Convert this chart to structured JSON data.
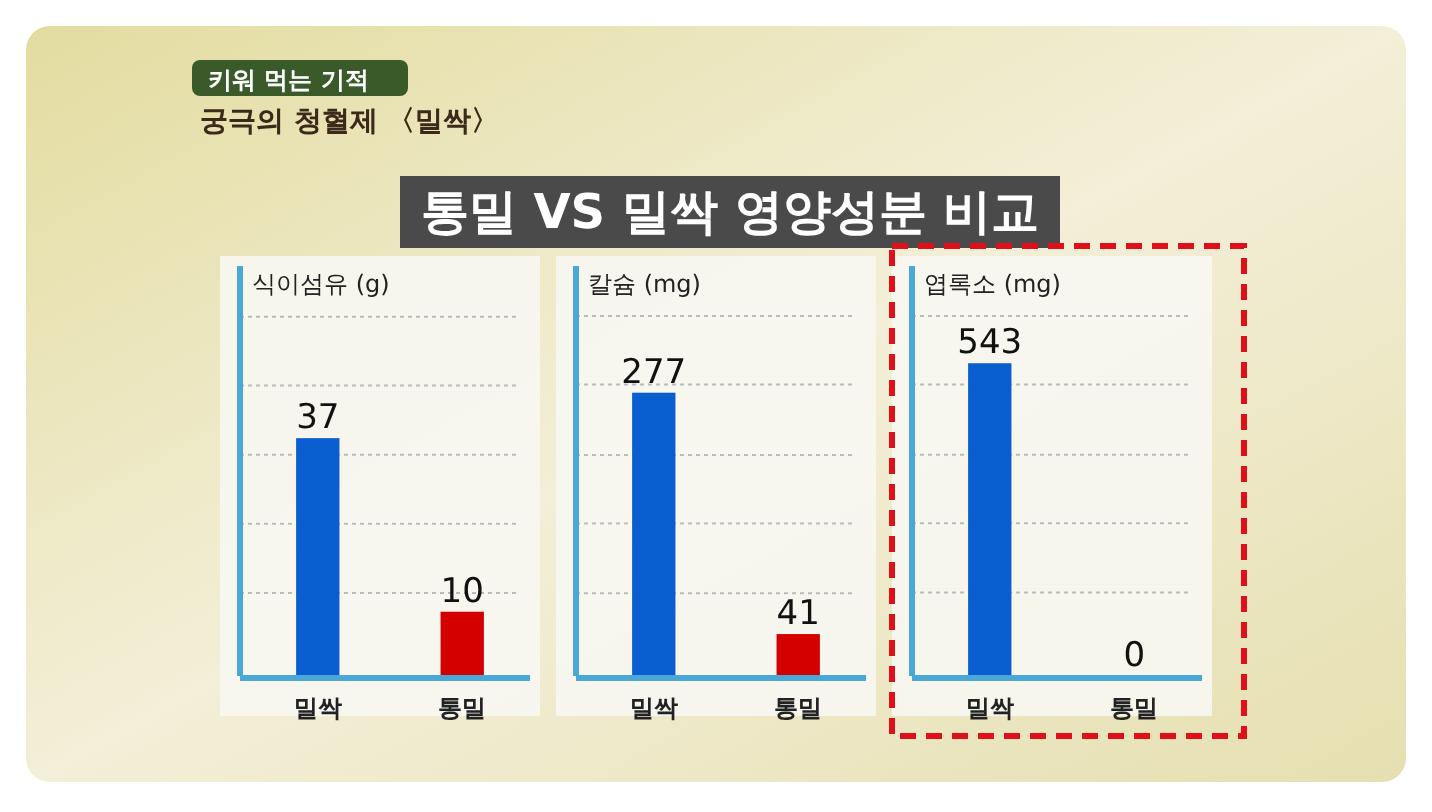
{
  "chart_data": [
    {
      "type": "bar",
      "title": "통밀 VS 밀싹 영양성분 비교",
      "annotations": [
        "키워 먹는 기적",
        "궁극의 청혈제 〈밀싹〉"
      ],
      "ylabel": "식이섬유 (g)",
      "categories": [
        "밀싹",
        "통밀"
      ],
      "values": [
        37,
        10
      ],
      "colors": [
        "#0a5fd0",
        "#d40000"
      ],
      "ylim": [
        0,
        56
      ],
      "yticks": [
        {
          "value": 12.9,
          "label": null
        },
        {
          "value": 23.7,
          "label": null
        },
        {
          "value": 34.4,
          "label": null
        },
        {
          "value": 45.2,
          "label": null
        },
        {
          "value": 55.9,
          "label": null
        }
      ],
      "grid": "y",
      "data_labels": true
    },
    {
      "type": "bar",
      "ylabel": "칼슘 (mg)",
      "categories": [
        "밀싹",
        "통밀"
      ],
      "values": [
        277,
        41
      ],
      "colors": [
        "#0a5fd0",
        "#d40000"
      ],
      "ylim": [
        0,
        352
      ],
      "yticks": [
        {
          "value": 81,
          "label": null
        },
        {
          "value": 149,
          "label": null
        },
        {
          "value": 216,
          "label": null
        },
        {
          "value": 285,
          "label": null
        },
        {
          "value": 352,
          "label": null
        }
      ],
      "grid": "y",
      "data_labels": true
    },
    {
      "type": "bar",
      "ylabel": "엽록소 (mg)",
      "categories": [
        "밀싹",
        "통밀"
      ],
      "values": [
        543,
        0
      ],
      "colors": [
        "#0a5fd0",
        "#d40000"
      ],
      "ylim": [
        0,
        625
      ],
      "yticks": [
        {
          "value": 145,
          "label": null
        },
        {
          "value": 265,
          "label": null
        },
        {
          "value": 384,
          "label": null
        },
        {
          "value": 506,
          "label": null
        },
        {
          "value": 625,
          "label": null
        }
      ],
      "grid": "y",
      "data_labels": true
    }
  ]
}
